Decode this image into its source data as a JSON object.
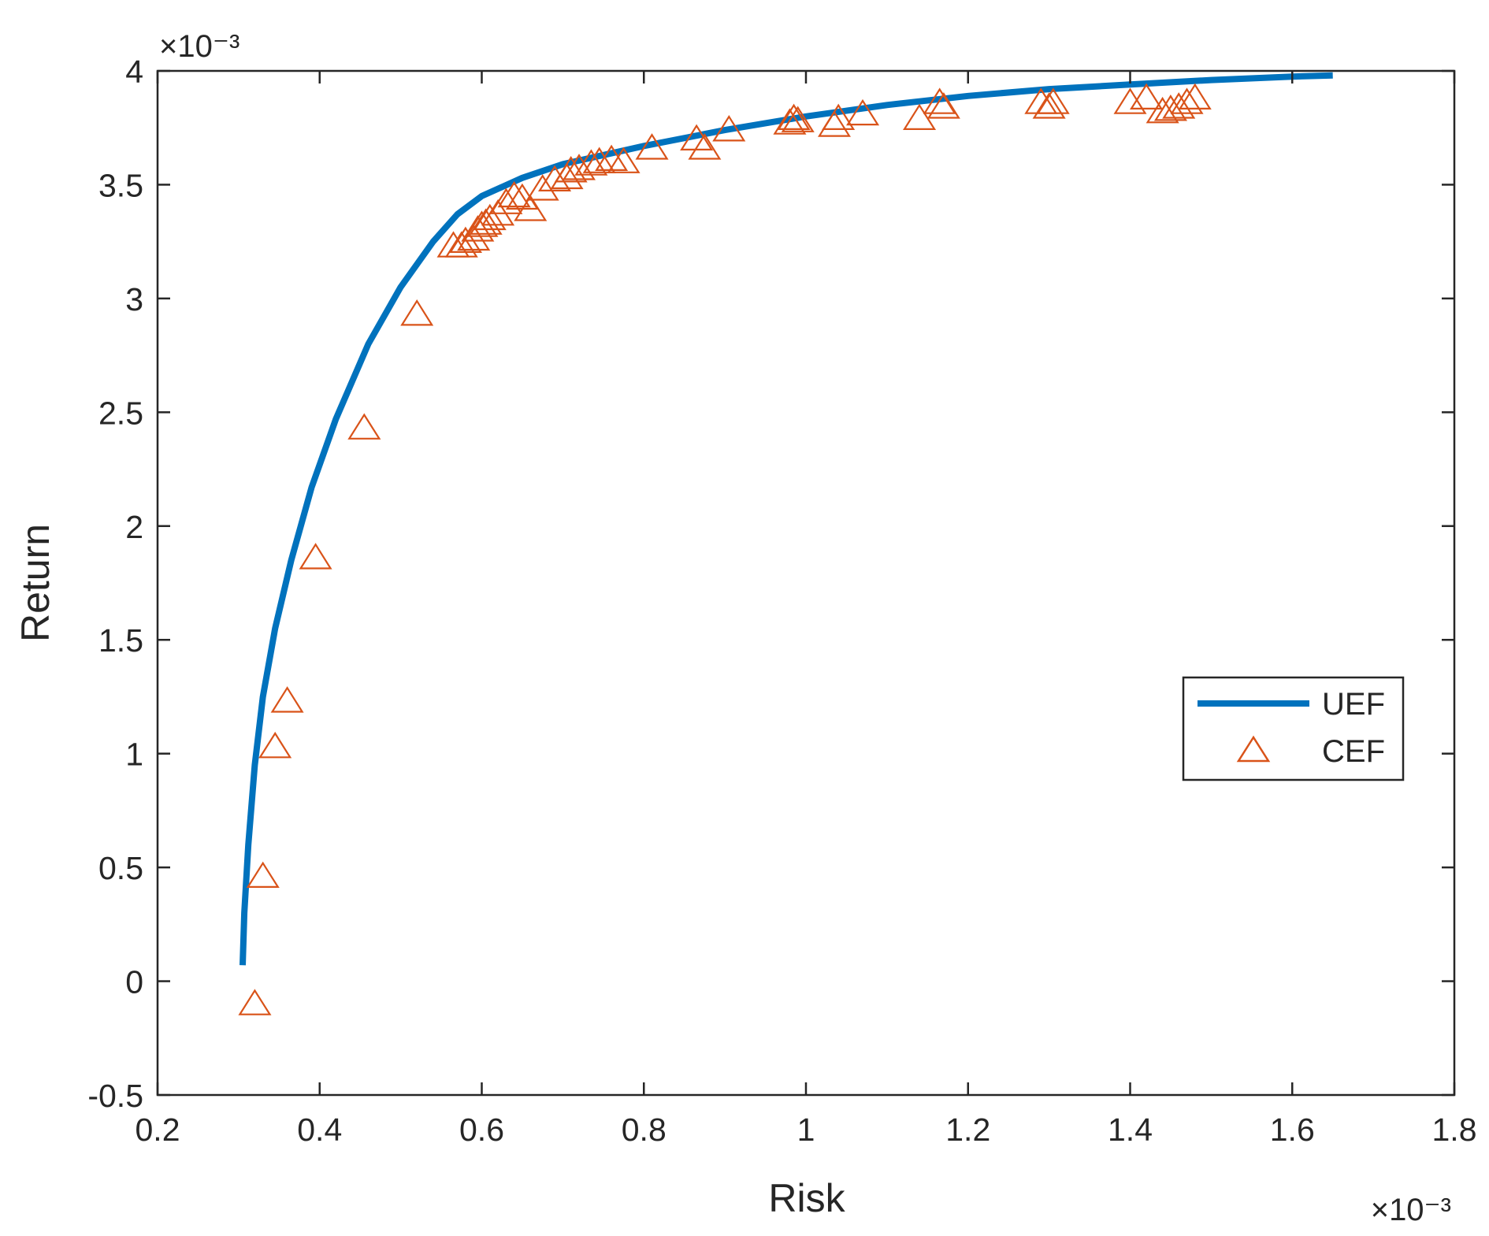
{
  "chart_data": {
    "type": "line",
    "xlabel": "Risk",
    "ylabel": "Return",
    "x_exponent_label": "×10⁻³",
    "y_exponent_label": "×10⁻³",
    "xlim": [
      0.2,
      1.8
    ],
    "ylim": [
      -0.5,
      4
    ],
    "x_ticks": [
      "0.2",
      "0.4",
      "0.6",
      "0.8",
      "1",
      "1.2",
      "1.4",
      "1.6",
      "1.8"
    ],
    "y_ticks": [
      "-0.5",
      "0",
      "0.5",
      "1",
      "1.5",
      "2",
      "2.5",
      "3",
      "3.5",
      "4"
    ],
    "grid": false,
    "legend_position": "right",
    "colors": {
      "UEF": "#0072BD",
      "CEF": "#D95319",
      "axes": "#262626"
    },
    "series": [
      {
        "name": "UEF",
        "kind": "line",
        "x": [
          0.305,
          0.307,
          0.312,
          0.32,
          0.33,
          0.345,
          0.365,
          0.39,
          0.42,
          0.46,
          0.5,
          0.54,
          0.57,
          0.6,
          0.65,
          0.7,
          0.8,
          0.9,
          1.0,
          1.1,
          1.2,
          1.3,
          1.4,
          1.5,
          1.6,
          1.65
        ],
        "y": [
          0.07,
          0.3,
          0.6,
          0.95,
          1.25,
          1.55,
          1.85,
          2.17,
          2.47,
          2.8,
          3.05,
          3.25,
          3.37,
          3.45,
          3.53,
          3.59,
          3.67,
          3.74,
          3.8,
          3.85,
          3.89,
          3.92,
          3.94,
          3.96,
          3.975,
          3.98
        ]
      },
      {
        "name": "CEF",
        "kind": "marker-triangle",
        "x": [
          0.32,
          0.33,
          0.345,
          0.36,
          0.395,
          0.455,
          0.52,
          0.565,
          0.575,
          0.58,
          0.59,
          0.595,
          0.6,
          0.605,
          0.61,
          0.62,
          0.63,
          0.64,
          0.65,
          0.66,
          0.675,
          0.69,
          0.705,
          0.71,
          0.72,
          0.735,
          0.745,
          0.76,
          0.775,
          0.81,
          0.865,
          0.875,
          0.905,
          0.98,
          0.985,
          0.99,
          1.035,
          1.04,
          1.07,
          1.14,
          1.165,
          1.17,
          1.29,
          1.3,
          1.305,
          1.4,
          1.42,
          1.44,
          1.45,
          1.46,
          1.47,
          1.48
        ],
        "y": [
          -0.1,
          0.46,
          1.03,
          1.23,
          1.86,
          2.43,
          2.93,
          3.23,
          3.23,
          3.25,
          3.26,
          3.3,
          3.32,
          3.33,
          3.35,
          3.37,
          3.42,
          3.45,
          3.44,
          3.39,
          3.48,
          3.52,
          3.53,
          3.56,
          3.57,
          3.59,
          3.6,
          3.61,
          3.6,
          3.66,
          3.7,
          3.66,
          3.74,
          3.77,
          3.79,
          3.78,
          3.76,
          3.79,
          3.81,
          3.79,
          3.86,
          3.84,
          3.86,
          3.84,
          3.86,
          3.86,
          3.88,
          3.82,
          3.83,
          3.84,
          3.86,
          3.88
        ]
      }
    ]
  }
}
